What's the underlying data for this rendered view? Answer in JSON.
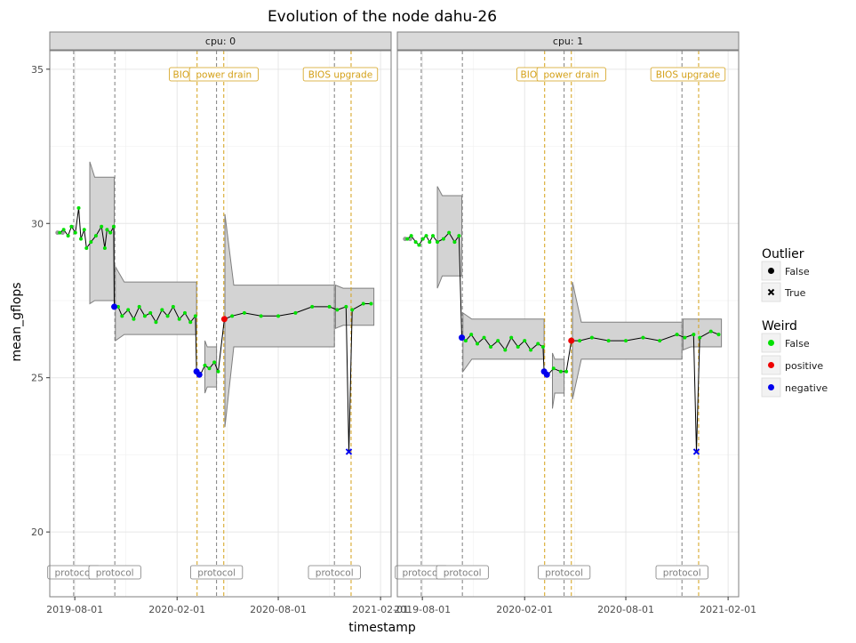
{
  "chart_data": {
    "type": "line",
    "title": "Evolution of the node dahu-26",
    "xlabel": "timestamp",
    "ylabel": "mean_gflops",
    "ylim": [
      17.9,
      35.6
    ],
    "y_ticks": [
      20,
      25,
      30,
      35
    ],
    "y_tick_labels": [
      "20",
      "25",
      "30",
      "35"
    ],
    "x_ticks": [
      "2019-08-01",
      "2020-02-01",
      "2020-08-01",
      "2021-02-01"
    ],
    "x_tick_labels": [
      "2019-08-01",
      "2020-02-01",
      "2020-08-01",
      "2021-02-01"
    ],
    "xlim": [
      "2019-06-17",
      "2021-02-20"
    ],
    "grid": true,
    "colors": {
      "normal": "#00e000",
      "positive": "#ee0000",
      "negative": "#0000ee",
      "protocol": "#7f7f7f",
      "bios": "#d4a017",
      "band_fill": "#d3d3d3",
      "band_edge": "#7f7f7f",
      "strip": "#d9d9d9"
    },
    "legend": {
      "position": "right",
      "outlier": {
        "title": "Outlier",
        "entries": [
          "False",
          "True"
        ]
      },
      "weird": {
        "title": "Weird",
        "entries": [
          "False",
          "positive",
          "negative"
        ]
      }
    },
    "events": [
      {
        "date": "2019-07-30",
        "label": "protocol",
        "kind": "protocol"
      },
      {
        "date": "2019-10-12",
        "label": "protocol",
        "kind": "protocol"
      },
      {
        "date": "2020-03-08",
        "label": "BIOS",
        "kind": "bios"
      },
      {
        "date": "2020-04-12",
        "label": "protocol",
        "kind": "protocol"
      },
      {
        "date": "2020-04-25",
        "label": "power drain",
        "kind": "bios"
      },
      {
        "date": "2020-11-10",
        "label": "protocol",
        "kind": "protocol"
      },
      {
        "date": "2020-12-10",
        "label": "BIOS upgrade",
        "kind": "bios"
      }
    ],
    "panels": [
      {
        "strip": "cpu: 0",
        "series": [
          [
            "2019-07-05",
            29.7
          ],
          [
            "2019-07-12",
            29.8
          ],
          [
            "2019-07-20",
            29.6
          ],
          [
            "2019-07-26",
            29.9
          ],
          [
            "2019-08-02",
            29.7
          ],
          [
            "2019-08-08",
            30.5
          ],
          [
            "2019-08-12",
            29.5
          ],
          [
            "2019-08-18",
            29.8
          ],
          [
            "2019-08-22",
            29.2
          ],
          [
            "2019-08-30",
            29.4
          ],
          [
            "2019-09-08",
            29.6
          ],
          [
            "2019-09-18",
            29.9
          ],
          [
            "2019-09-24",
            29.2
          ],
          [
            "2019-09-28",
            29.8
          ],
          [
            "2019-10-04",
            29.7
          ],
          [
            "2019-10-10",
            29.9
          ],
          [
            "2019-10-11",
            27.3
          ],
          [
            "2019-10-18",
            27.3
          ],
          [
            "2019-10-25",
            27.0
          ],
          [
            "2019-11-05",
            27.2
          ],
          [
            "2019-11-15",
            26.9
          ],
          [
            "2019-11-25",
            27.3
          ],
          [
            "2019-12-05",
            27.0
          ],
          [
            "2019-12-15",
            27.1
          ],
          [
            "2019-12-25",
            26.8
          ],
          [
            "2020-01-05",
            27.2
          ],
          [
            "2020-01-15",
            27.0
          ],
          [
            "2020-01-25",
            27.3
          ],
          [
            "2020-02-05",
            26.9
          ],
          [
            "2020-02-15",
            27.1
          ],
          [
            "2020-02-25",
            26.8
          ],
          [
            "2020-03-05",
            27.0
          ],
          [
            "2020-03-07",
            25.2
          ],
          [
            "2020-03-14",
            25.1
          ],
          [
            "2020-03-22",
            25.4
          ],
          [
            "2020-03-30",
            25.3
          ],
          [
            "2020-04-08",
            25.5
          ],
          [
            "2020-04-15",
            25.2
          ],
          [
            "2020-04-26",
            26.9
          ],
          [
            "2020-05-10",
            27.0
          ],
          [
            "2020-06-01",
            27.1
          ],
          [
            "2020-07-01",
            27.0
          ],
          [
            "2020-08-01",
            27.0
          ],
          [
            "2020-09-01",
            27.1
          ],
          [
            "2020-10-01",
            27.3
          ],
          [
            "2020-11-01",
            27.3
          ],
          [
            "2020-11-15",
            27.2
          ],
          [
            "2020-12-01",
            27.3
          ],
          [
            "2020-12-06",
            22.6
          ],
          [
            "2020-12-12",
            27.2
          ],
          [
            "2021-01-01",
            27.4
          ],
          [
            "2021-01-15",
            27.4
          ]
        ],
        "gray_start": [
          [
            "2019-07-01",
            29.7
          ],
          [
            "2019-07-10",
            29.7
          ]
        ],
        "bands": [
          {
            "from": "2019-08-28",
            "to": "2019-10-11",
            "lower": 27.5,
            "upper": 31.5,
            "start_lower": 27.4,
            "start_upper": 32.0
          },
          {
            "from": "2019-10-13",
            "to": "2020-03-07",
            "lower": 26.4,
            "upper": 28.1,
            "start_lower": 26.2,
            "start_upper": 28.6
          },
          {
            "from": "2020-03-22",
            "to": "2020-04-12",
            "lower": 24.7,
            "upper": 26.0,
            "start_lower": 24.5,
            "start_upper": 26.2
          },
          {
            "from": "2020-04-27",
            "to": "2020-11-10",
            "lower": 26.0,
            "upper": 28.0,
            "start_lower": 23.4,
            "start_upper": 30.3
          },
          {
            "from": "2020-11-12",
            "to": "2021-01-20",
            "lower": 26.7,
            "upper": 27.9,
            "start_lower": 26.6,
            "start_upper": 28.0
          }
        ],
        "highlights": [
          {
            "date": "2019-10-11",
            "value": 27.3,
            "weird": "negative",
            "outlier": false
          },
          {
            "date": "2020-03-07",
            "value": 25.2,
            "weird": "negative",
            "outlier": false
          },
          {
            "date": "2020-03-12",
            "value": 25.1,
            "weird": "negative",
            "outlier": false
          },
          {
            "date": "2020-04-26",
            "value": 26.9,
            "weird": "positive",
            "outlier": false
          },
          {
            "date": "2020-12-06",
            "value": 22.6,
            "weird": "negative",
            "outlier": true
          }
        ]
      },
      {
        "strip": "cpu: 1",
        "series": [
          [
            "2019-07-05",
            29.5
          ],
          [
            "2019-07-12",
            29.6
          ],
          [
            "2019-07-20",
            29.4
          ],
          [
            "2019-07-26",
            29.3
          ],
          [
            "2019-08-02",
            29.5
          ],
          [
            "2019-08-08",
            29.6
          ],
          [
            "2019-08-14",
            29.4
          ],
          [
            "2019-08-20",
            29.6
          ],
          [
            "2019-08-28",
            29.4
          ],
          [
            "2019-09-08",
            29.5
          ],
          [
            "2019-09-18",
            29.7
          ],
          [
            "2019-09-28",
            29.4
          ],
          [
            "2019-10-06",
            29.6
          ],
          [
            "2019-10-11",
            26.3
          ],
          [
            "2019-10-18",
            26.2
          ],
          [
            "2019-10-28",
            26.4
          ],
          [
            "2019-11-08",
            26.1
          ],
          [
            "2019-11-20",
            26.3
          ],
          [
            "2019-12-02",
            26.0
          ],
          [
            "2019-12-15",
            26.2
          ],
          [
            "2019-12-28",
            25.9
          ],
          [
            "2020-01-08",
            26.3
          ],
          [
            "2020-01-20",
            26.0
          ],
          [
            "2020-02-01",
            26.2
          ],
          [
            "2020-02-12",
            25.9
          ],
          [
            "2020-02-25",
            26.1
          ],
          [
            "2020-03-05",
            26.0
          ],
          [
            "2020-03-07",
            25.2
          ],
          [
            "2020-03-14",
            25.1
          ],
          [
            "2020-03-24",
            25.3
          ],
          [
            "2020-04-06",
            25.2
          ],
          [
            "2020-04-16",
            25.2
          ],
          [
            "2020-04-25",
            26.2
          ],
          [
            "2020-05-10",
            26.2
          ],
          [
            "2020-06-01",
            26.3
          ],
          [
            "2020-07-01",
            26.2
          ],
          [
            "2020-08-01",
            26.2
          ],
          [
            "2020-09-01",
            26.3
          ],
          [
            "2020-10-01",
            26.2
          ],
          [
            "2020-11-01",
            26.4
          ],
          [
            "2020-11-15",
            26.3
          ],
          [
            "2020-12-01",
            26.4
          ],
          [
            "2020-12-06",
            22.6
          ],
          [
            "2020-12-12",
            26.3
          ],
          [
            "2021-01-01",
            26.5
          ],
          [
            "2021-01-15",
            26.4
          ]
        ],
        "gray_start": [
          [
            "2019-07-01",
            29.5
          ],
          [
            "2019-07-10",
            29.5
          ]
        ],
        "bands": [
          {
            "from": "2019-08-28",
            "to": "2019-10-11",
            "lower": 28.3,
            "upper": 30.9,
            "start_lower": 27.9,
            "start_upper": 31.2
          },
          {
            "from": "2019-10-13",
            "to": "2020-03-07",
            "lower": 25.6,
            "upper": 26.9,
            "start_lower": 25.2,
            "start_upper": 27.1
          },
          {
            "from": "2020-03-22",
            "to": "2020-04-12",
            "lower": 24.5,
            "upper": 25.6,
            "start_lower": 24.0,
            "start_upper": 25.8
          },
          {
            "from": "2020-04-27",
            "to": "2020-11-10",
            "lower": 25.6,
            "upper": 26.8,
            "start_lower": 24.3,
            "start_upper": 28.1
          },
          {
            "from": "2020-11-12",
            "to": "2021-01-20",
            "lower": 26.0,
            "upper": 26.9,
            "start_lower": 25.9,
            "start_upper": 26.9
          }
        ],
        "highlights": [
          {
            "date": "2019-10-11",
            "value": 26.3,
            "weird": "negative",
            "outlier": false
          },
          {
            "date": "2020-03-07",
            "value": 25.2,
            "weird": "negative",
            "outlier": false
          },
          {
            "date": "2020-03-12",
            "value": 25.1,
            "weird": "negative",
            "outlier": false
          },
          {
            "date": "2020-04-25",
            "value": 26.2,
            "weird": "positive",
            "outlier": false
          },
          {
            "date": "2020-12-06",
            "value": 22.6,
            "weird": "negative",
            "outlier": true
          }
        ]
      }
    ]
  }
}
